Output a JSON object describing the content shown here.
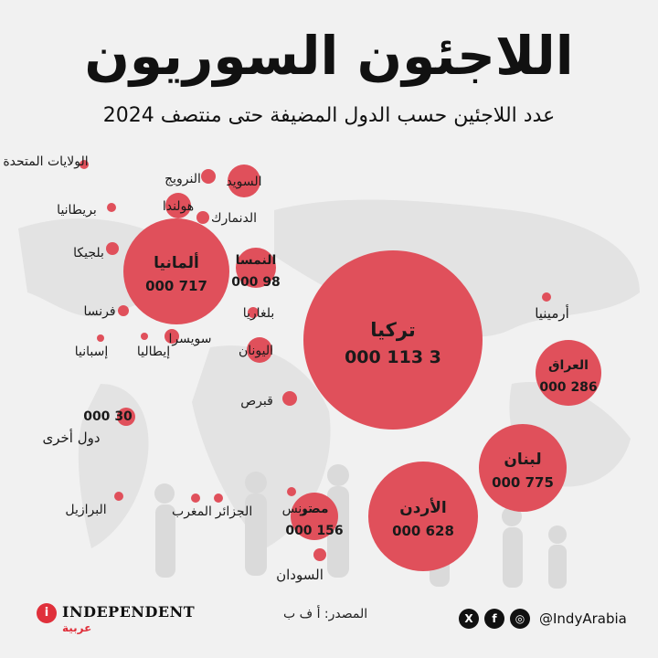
{
  "title": "اللاجئون السوريون",
  "subtitle": "عدد اللاجئين حسب الدول المضيفة حتى منتصف 2024",
  "chart_data": {
    "type": "bubble",
    "title": "اللاجئون السوريون",
    "subtitle": "عدد اللاجئين حسب الدول المضيفة حتى منتصف 2024",
    "color": "#e0505b",
    "series": [
      {
        "name": "تركيا",
        "value": 3113000,
        "value_label": "3 113 000"
      },
      {
        "name": "لبنان",
        "value": 775000,
        "value_label": "775 000"
      },
      {
        "name": "ألمانيا",
        "value": 717000,
        "value_label": "717 000"
      },
      {
        "name": "الأردن",
        "value": 628000,
        "value_label": "628 000"
      },
      {
        "name": "العراق",
        "value": 286000,
        "value_label": "286 000"
      },
      {
        "name": "مصر",
        "value": 156000,
        "value_label": "156 000"
      },
      {
        "name": "النمسا",
        "value": 98000,
        "value_label": "98 000"
      },
      {
        "name": "دول أخرى",
        "value": 30000,
        "value_label": "30 000"
      },
      {
        "name": "السويد",
        "value": null,
        "value_label": ""
      },
      {
        "name": "هولندا",
        "value": null,
        "value_label": ""
      },
      {
        "name": "اليونان",
        "value": null,
        "value_label": ""
      },
      {
        "name": "النرويج",
        "value": null,
        "value_label": ""
      },
      {
        "name": "الدنمارك",
        "value": null,
        "value_label": ""
      },
      {
        "name": "بلغاريا",
        "value": null,
        "value_label": ""
      },
      {
        "name": "قبرص",
        "value": null,
        "value_label": ""
      },
      {
        "name": "السودان",
        "value": null,
        "value_label": ""
      },
      {
        "name": "بلجيكا",
        "value": null,
        "value_label": ""
      },
      {
        "name": "فرنسا",
        "value": null,
        "value_label": ""
      },
      {
        "name": "سويسرا",
        "value": null,
        "value_label": ""
      },
      {
        "name": "بريطانيا",
        "value": null,
        "value_label": ""
      },
      {
        "name": "الولايات المتحدة",
        "value": null,
        "value_label": ""
      },
      {
        "name": "أرمينيا",
        "value": null,
        "value_label": ""
      },
      {
        "name": "إيطاليا",
        "value": null,
        "value_label": ""
      },
      {
        "name": "إسبانيا",
        "value": null,
        "value_label": ""
      },
      {
        "name": "البرازيل",
        "value": null,
        "value_label": ""
      },
      {
        "name": "المغرب",
        "value": null,
        "value_label": ""
      },
      {
        "name": "الجزائر",
        "value": null,
        "value_label": ""
      },
      {
        "name": "تونس",
        "value": null,
        "value_label": ""
      }
    ]
  },
  "footer": {
    "logo_mark": "i",
    "logo_text": "INDEPENDENT",
    "logo_sub": "عربية",
    "source": "المصدر: أ ف ب",
    "handle": "@IndyArabia",
    "social_icons": [
      "x-icon",
      "facebook-icon",
      "instagram-icon"
    ],
    "social_glyphs": [
      "X",
      "f",
      "◎"
    ]
  }
}
